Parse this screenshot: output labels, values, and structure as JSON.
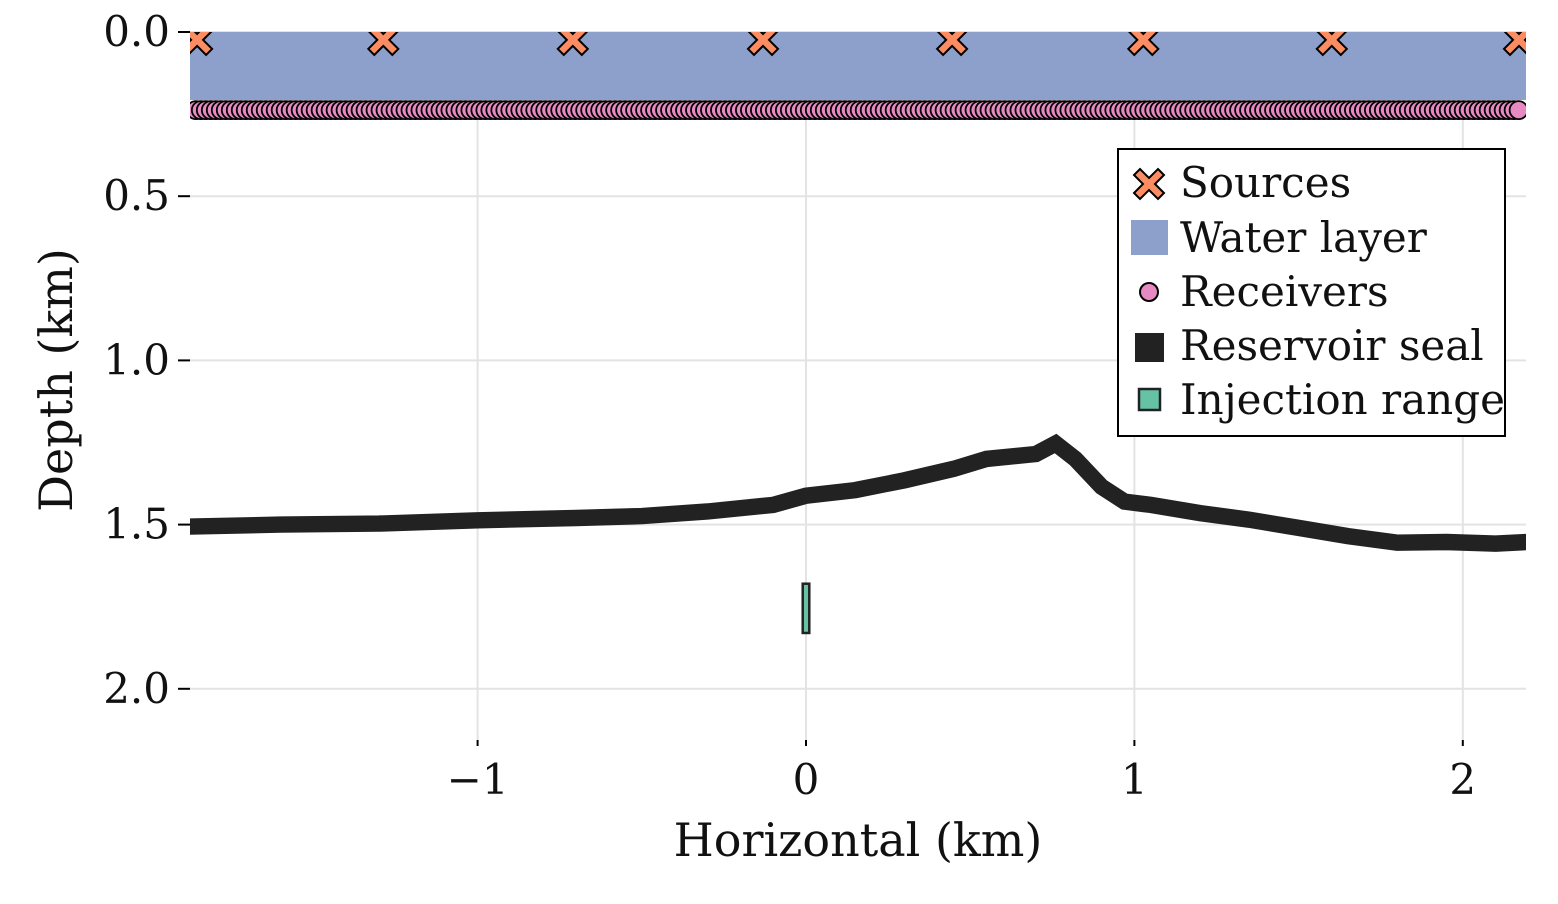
{
  "chart_data": {
    "type": "scatter",
    "title": "",
    "xlabel": "Horizontal (km)",
    "ylabel": "Depth (km)",
    "xlim": [
      -1.878,
      2.195
    ],
    "ylim": [
      2.13,
      0.0
    ],
    "y_inverted": true,
    "grid": true,
    "legend_position": "top-right",
    "xticks": [
      {
        "v": -1,
        "label": "−1"
      },
      {
        "v": 0,
        "label": "0"
      },
      {
        "v": 1,
        "label": "1"
      },
      {
        "v": 2,
        "label": "2"
      }
    ],
    "yticks": [
      {
        "v": 0.0,
        "label": "0.0"
      },
      {
        "v": 0.5,
        "label": "0.5"
      },
      {
        "v": 1.0,
        "label": "1.0"
      },
      {
        "v": 1.5,
        "label": "1.5"
      },
      {
        "v": 2.0,
        "label": "2.0"
      }
    ],
    "colors": {
      "sources": "#fc8d62",
      "water": "#8da0cb",
      "receivers": "#e78ac3",
      "seal": "#222222",
      "injection": "#66c2a5",
      "grid": "#e3e3e3"
    },
    "water_layer": {
      "label": "Water layer",
      "depth_top": 0.0,
      "depth_bottom": 0.207
    },
    "sources": {
      "label": "Sources",
      "depth": 0.024,
      "x": [
        -1.854,
        -1.287,
        -0.71,
        -0.131,
        0.445,
        1.027,
        1.601,
        2.171
      ]
    },
    "receivers": {
      "label": "Receivers",
      "depth": 0.238,
      "x_start": -1.878,
      "x_end": 2.185,
      "spacing": 0.0152
    },
    "reservoir_seal": {
      "label": "Reservoir seal",
      "thickness": 0.05,
      "x": [
        -1.878,
        -1.6,
        -1.3,
        -1.0,
        -0.7,
        -0.5,
        -0.3,
        -0.1,
        0.0,
        0.15,
        0.3,
        0.45,
        0.55,
        0.7,
        0.76,
        0.82,
        0.9,
        0.97,
        1.05,
        1.2,
        1.35,
        1.5,
        1.65,
        1.8,
        1.95,
        2.1,
        2.195
      ],
      "depth": [
        1.506,
        1.5,
        1.497,
        1.487,
        1.48,
        1.474,
        1.46,
        1.44,
        1.412,
        1.395,
        1.365,
        1.33,
        1.3,
        1.285,
        1.253,
        1.3,
        1.385,
        1.43,
        1.44,
        1.465,
        1.485,
        1.51,
        1.535,
        1.555,
        1.553,
        1.558,
        1.553
      ]
    },
    "injection_range": {
      "label": "Injection range",
      "x": 0.0,
      "width": 0.02,
      "depth_top": 1.68,
      "depth_bottom": 1.83
    }
  }
}
